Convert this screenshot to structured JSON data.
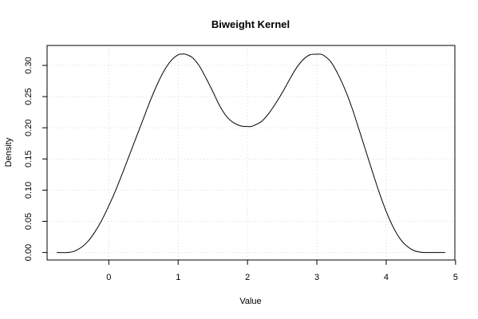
{
  "chart_data": {
    "type": "line",
    "title": "Biweight Kernel",
    "xlabel": "Value",
    "ylabel": "Density",
    "xlim": [
      -0.89,
      4.99
    ],
    "ylim": [
      -0.012,
      0.332
    ],
    "x_ticks": [
      0,
      1,
      2,
      3,
      4,
      5
    ],
    "x_tick_labels": [
      "0",
      "1",
      "2",
      "3",
      "4",
      "5"
    ],
    "y_ticks": [
      0.0,
      0.05,
      0.1,
      0.15,
      0.2,
      0.25,
      0.3
    ],
    "y_tick_labels": [
      "0.00",
      "0.05",
      "0.10",
      "0.15",
      "0.20",
      "0.25",
      "0.30"
    ],
    "grid": true,
    "series": [
      {
        "color": "#000000",
        "x": [
          -0.75,
          -0.6,
          -0.5,
          -0.4,
          -0.3,
          -0.2,
          -0.1,
          0.0,
          0.1,
          0.2,
          0.3,
          0.4,
          0.5,
          0.6,
          0.7,
          0.8,
          0.9,
          1.0,
          1.05,
          1.1,
          1.2,
          1.3,
          1.4,
          1.5,
          1.6,
          1.7,
          1.8,
          1.9,
          2.0,
          2.05,
          2.1,
          2.2,
          2.3,
          2.4,
          2.5,
          2.6,
          2.7,
          2.8,
          2.9,
          3.0,
          3.05,
          3.1,
          3.2,
          3.3,
          3.4,
          3.5,
          3.6,
          3.7,
          3.8,
          3.9,
          4.0,
          4.1,
          4.2,
          4.3,
          4.4,
          4.5,
          4.6,
          4.7,
          4.85
        ],
        "y": [
          0.0,
          0.0,
          0.002,
          0.008,
          0.018,
          0.033,
          0.052,
          0.075,
          0.1,
          0.128,
          0.157,
          0.186,
          0.215,
          0.244,
          0.27,
          0.292,
          0.308,
          0.317,
          0.318,
          0.318,
          0.313,
          0.3,
          0.28,
          0.258,
          0.235,
          0.218,
          0.208,
          0.203,
          0.202,
          0.202,
          0.204,
          0.21,
          0.222,
          0.238,
          0.256,
          0.276,
          0.295,
          0.309,
          0.317,
          0.318,
          0.318,
          0.316,
          0.306,
          0.287,
          0.263,
          0.234,
          0.2,
          0.165,
          0.13,
          0.096,
          0.066,
          0.041,
          0.022,
          0.01,
          0.003,
          0.0005,
          0.0,
          0.0,
          0.0
        ]
      }
    ]
  }
}
